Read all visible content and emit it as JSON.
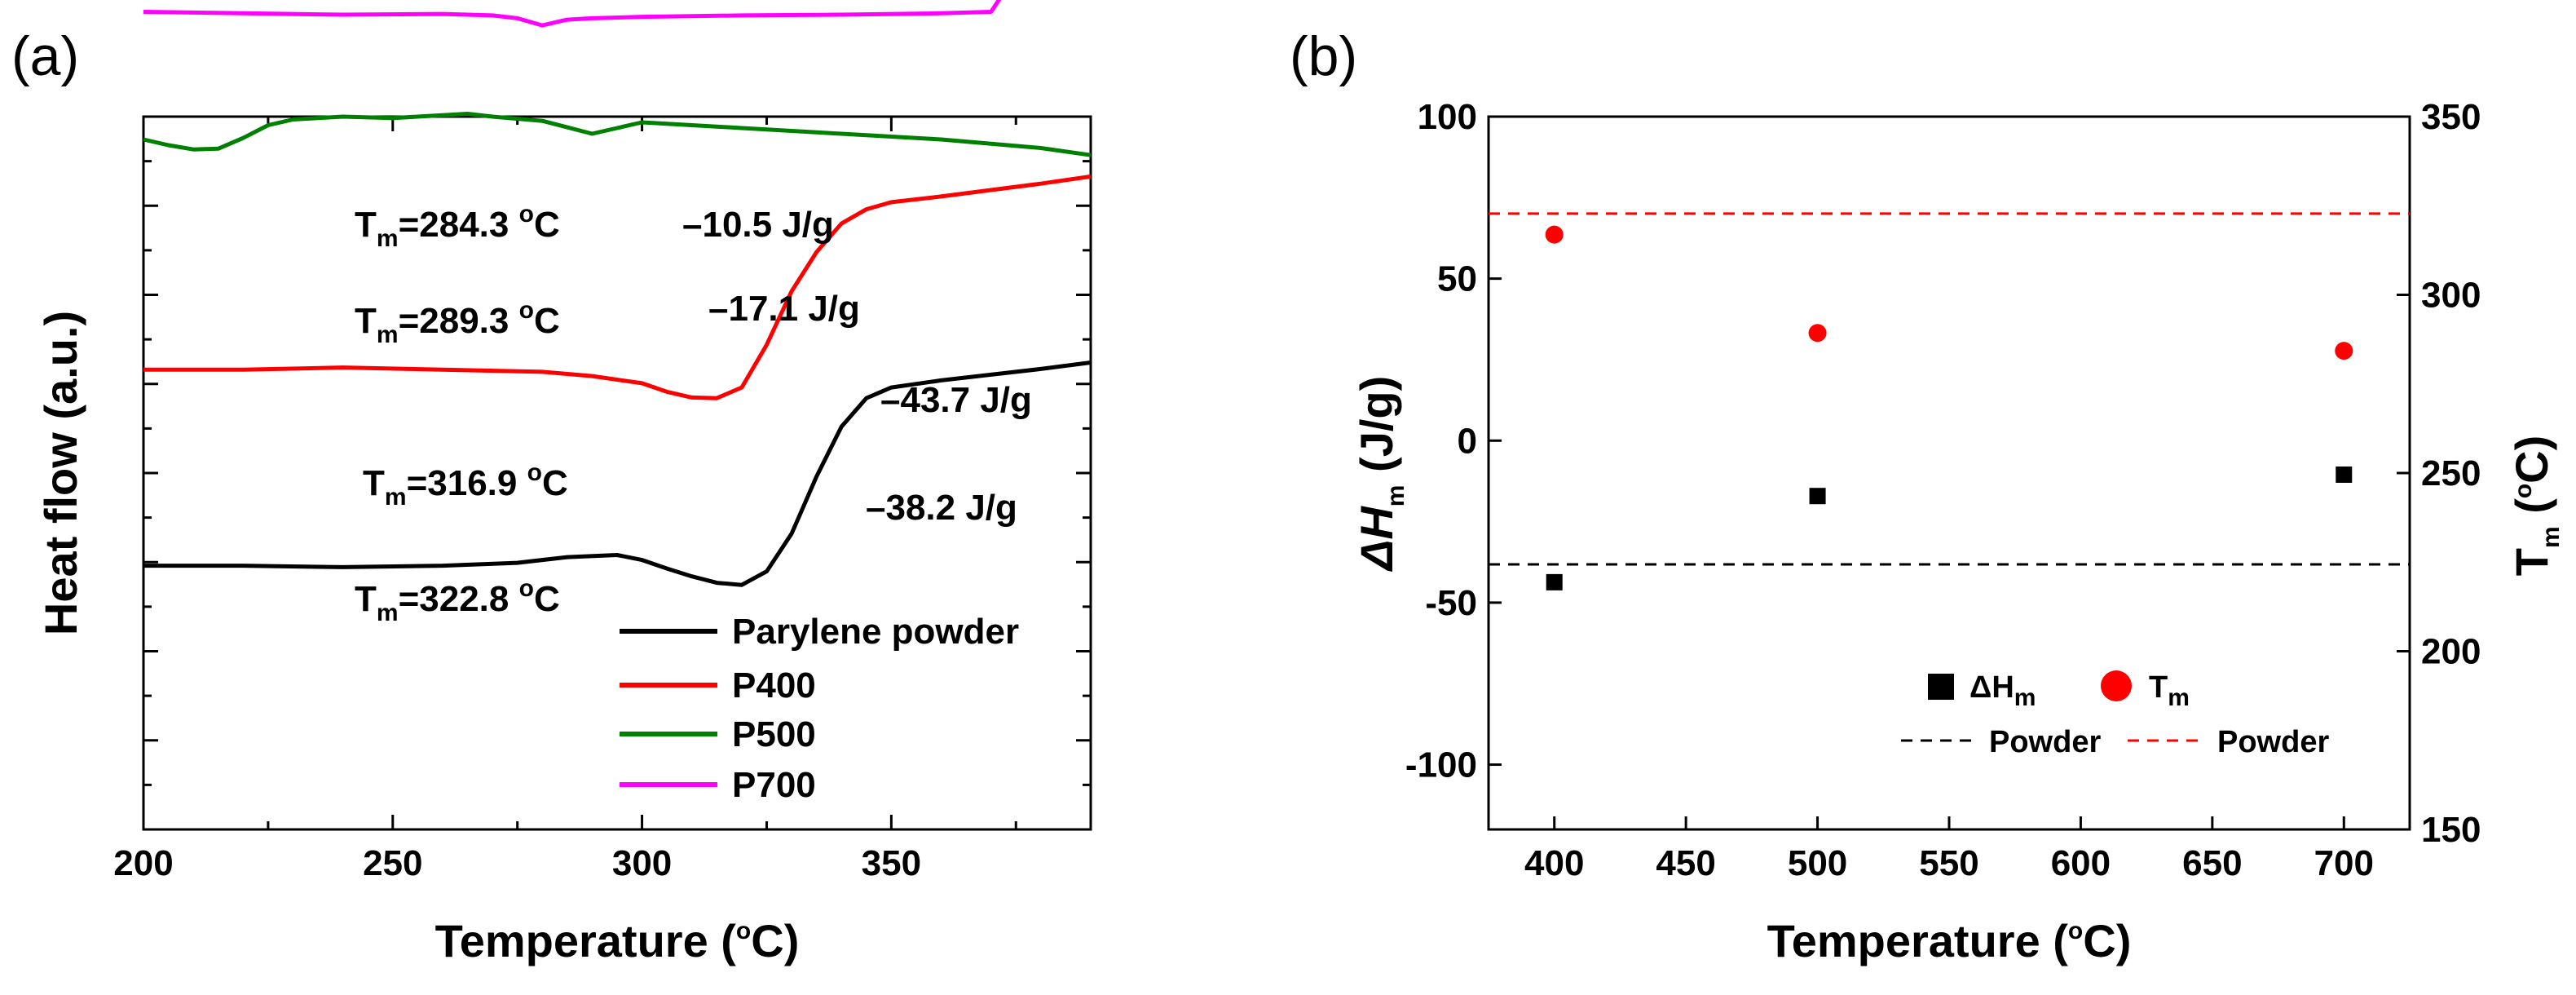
{
  "chart_data": [
    {
      "panel_label": "(a)",
      "type": "line",
      "xlabel_prefix": "Temperature (",
      "xlabel_degree": "o",
      "xlabel_suffix": "C)",
      "ylabel": "Heat flow (a.u.)",
      "xlim": [
        200,
        390
      ],
      "ylim": [
        0,
        100
      ],
      "x_ticks": [
        200,
        250,
        300,
        350
      ],
      "grid": false,
      "series": [
        {
          "name": "Parylene powder",
          "color": "#000000",
          "x": [
            200,
            220,
            240,
            260,
            275,
            285,
            295,
            300,
            305,
            310,
            315,
            320,
            325,
            330,
            335,
            340,
            345,
            350,
            360,
            370,
            380,
            390
          ],
          "y": [
            37.0,
            37.0,
            36.8,
            37.0,
            37.4,
            38.2,
            38.5,
            37.8,
            36.6,
            35.5,
            34.6,
            34.3,
            36.2,
            41.5,
            49.5,
            56.5,
            60.5,
            62.0,
            63.0,
            63.8,
            64.6,
            65.5
          ]
        },
        {
          "name": "P400",
          "color": "#ff0000",
          "x": [
            200,
            220,
            240,
            260,
            280,
            290,
            300,
            305,
            310,
            315,
            320,
            325,
            330,
            335,
            340,
            345,
            350,
            360,
            370,
            380,
            390
          ],
          "y": [
            64.5,
            64.5,
            64.8,
            64.5,
            64.2,
            63.6,
            62.6,
            61.4,
            60.6,
            60.5,
            62.0,
            68.0,
            75.5,
            81.0,
            85.0,
            87.0,
            88.0,
            88.8,
            89.7,
            90.6,
            91.6
          ]
        },
        {
          "name": "P500",
          "color": "#008000",
          "x": [
            200,
            205,
            210,
            215,
            220,
            225,
            230,
            240,
            250,
            260,
            265,
            270,
            280,
            285,
            290,
            295,
            300,
            310,
            320,
            330,
            340,
            350,
            360,
            370,
            380,
            390
          ],
          "y": [
            96.8,
            96.0,
            95.4,
            95.5,
            97.0,
            98.8,
            99.6,
            100.0,
            99.8,
            100.2,
            100.4,
            100.0,
            99.4,
            98.5,
            97.6,
            98.4,
            99.2,
            98.8,
            98.4,
            98.0,
            97.6,
            97.2,
            96.8,
            96.2,
            95.6,
            94.6
          ]
        },
        {
          "name": "P700",
          "color": "#ff00ff",
          "x": [
            200,
            220,
            240,
            260,
            270,
            275,
            280,
            285,
            290,
            300,
            320,
            340,
            360,
            370,
            372,
            380,
            390
          ],
          "y": [
            114.7,
            114.5,
            114.3,
            114.4,
            114.2,
            113.8,
            112.8,
            113.6,
            113.8,
            114.0,
            114.2,
            114.3,
            114.5,
            114.7,
            116.8,
            117.2,
            117.6
          ]
        }
      ],
      "annotations": [
        {
          "tm_label": "T",
          "tm_sub": "m",
          "tm_value": "=284.3 ",
          "tm_sup": "o",
          "tm_unit": "C",
          "enthalpy": "–10.5 J/g"
        },
        {
          "tm_label": "T",
          "tm_sub": "m",
          "tm_value": "=289.3 ",
          "tm_sup": "o",
          "tm_unit": "C",
          "enthalpy": "–17.1 J/g"
        },
        {
          "tm_label": "T",
          "tm_sub": "m",
          "tm_value": "=316.9 ",
          "tm_sup": "o",
          "tm_unit": "C",
          "enthalpy": "–43.7 J/g"
        },
        {
          "tm_label": "T",
          "tm_sub": "m",
          "tm_value": "=322.8 ",
          "tm_sup": "o",
          "tm_unit": "C",
          "enthalpy": "–38.2 J/g"
        }
      ],
      "legend": [
        "Parylene powder",
        "P400",
        "P500",
        "P700"
      ],
      "legend_position": "bottom-right"
    },
    {
      "panel_label": "(b)",
      "type": "scatter",
      "xlabel_prefix": "Temperature (",
      "xlabel_degree": "o",
      "xlabel_suffix": "C)",
      "ylabel_left_main": "ΔH",
      "ylabel_left_sub": "m",
      "ylabel_left_unit": " (J/g)",
      "ylabel_right_main": "T",
      "ylabel_right_sub": "m",
      "ylabel_right_prefix": " (",
      "ylabel_right_degree": "o",
      "ylabel_right_suffix": "C)",
      "xlim": [
        375,
        725
      ],
      "ylim_left": [
        -120,
        100
      ],
      "ylim_right": [
        150,
        350
      ],
      "x_ticks": [
        400,
        450,
        500,
        550,
        600,
        650,
        700
      ],
      "y_ticks_left": [
        -100,
        -50,
        0,
        50,
        100
      ],
      "y_ticks_right": [
        150,
        200,
        250,
        300,
        350
      ],
      "grid": false,
      "series": [
        {
          "name": "ΔH",
          "sub": "m",
          "marker": "square",
          "color": "#000000",
          "axis": "left",
          "x": [
            400,
            500,
            700
          ],
          "y": [
            -43.7,
            -17.1,
            -10.5
          ]
        },
        {
          "name": "T",
          "sub": "m",
          "marker": "circle",
          "color": "#ff0000",
          "axis": "right",
          "x": [
            400,
            500,
            700
          ],
          "y": [
            316.9,
            289.3,
            284.3
          ]
        }
      ],
      "reference_lines": [
        {
          "label": "Powder",
          "axis": "left",
          "value": -38.2,
          "color": "#000000",
          "style": "dashed"
        },
        {
          "label": "Powder",
          "axis": "right",
          "value": 322.8,
          "color": "#ff0000",
          "style": "dashed"
        }
      ],
      "legend_position": "bottom-right"
    }
  ]
}
